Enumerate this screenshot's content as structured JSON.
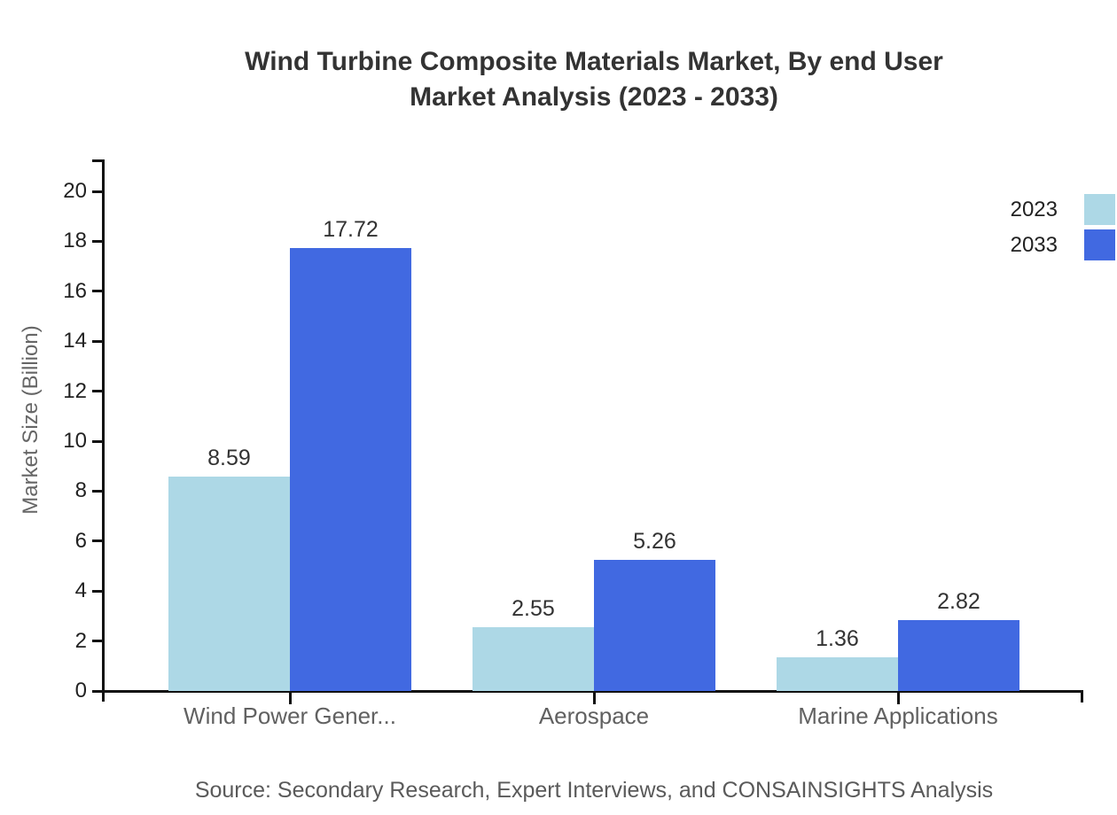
{
  "chart": {
    "title_line1": "Wind Turbine Composite Materials Market, By end User",
    "title_line2": "Market Analysis (2023 - 2033)",
    "source": "Source: Secondary Research, Expert Interviews, and CONSAINSIGHTS Analysis"
  },
  "chart_data": {
    "type": "bar",
    "title": "Wind Turbine Composite Materials Market, By end User Market Analysis (2023 - 2033)",
    "categories": [
      "Wind Power Gener...",
      "Aerospace",
      "Marine Applications"
    ],
    "series": [
      {
        "name": "2023",
        "color": "#ADD8E6",
        "values": [
          8.59,
          2.55,
          1.36
        ]
      },
      {
        "name": "2033",
        "color": "#4169E1",
        "values": [
          17.72,
          5.26,
          2.82
        ]
      }
    ],
    "value_labels": [
      "8.59",
      "2.55",
      "1.36",
      "17.72",
      "5.26",
      "2.82"
    ],
    "xlabel": "",
    "ylabel": "Market Size (Billion)",
    "yticks": [
      0,
      2,
      4,
      6,
      8,
      10,
      12,
      14,
      16,
      18,
      20
    ],
    "ylim": [
      0,
      21.3
    ],
    "grid": false,
    "legend_position": "top-right",
    "axis_color": "#111111",
    "source": "Source: Secondary Research, Expert Interviews, and CONSAINSIGHTS Analysis"
  }
}
